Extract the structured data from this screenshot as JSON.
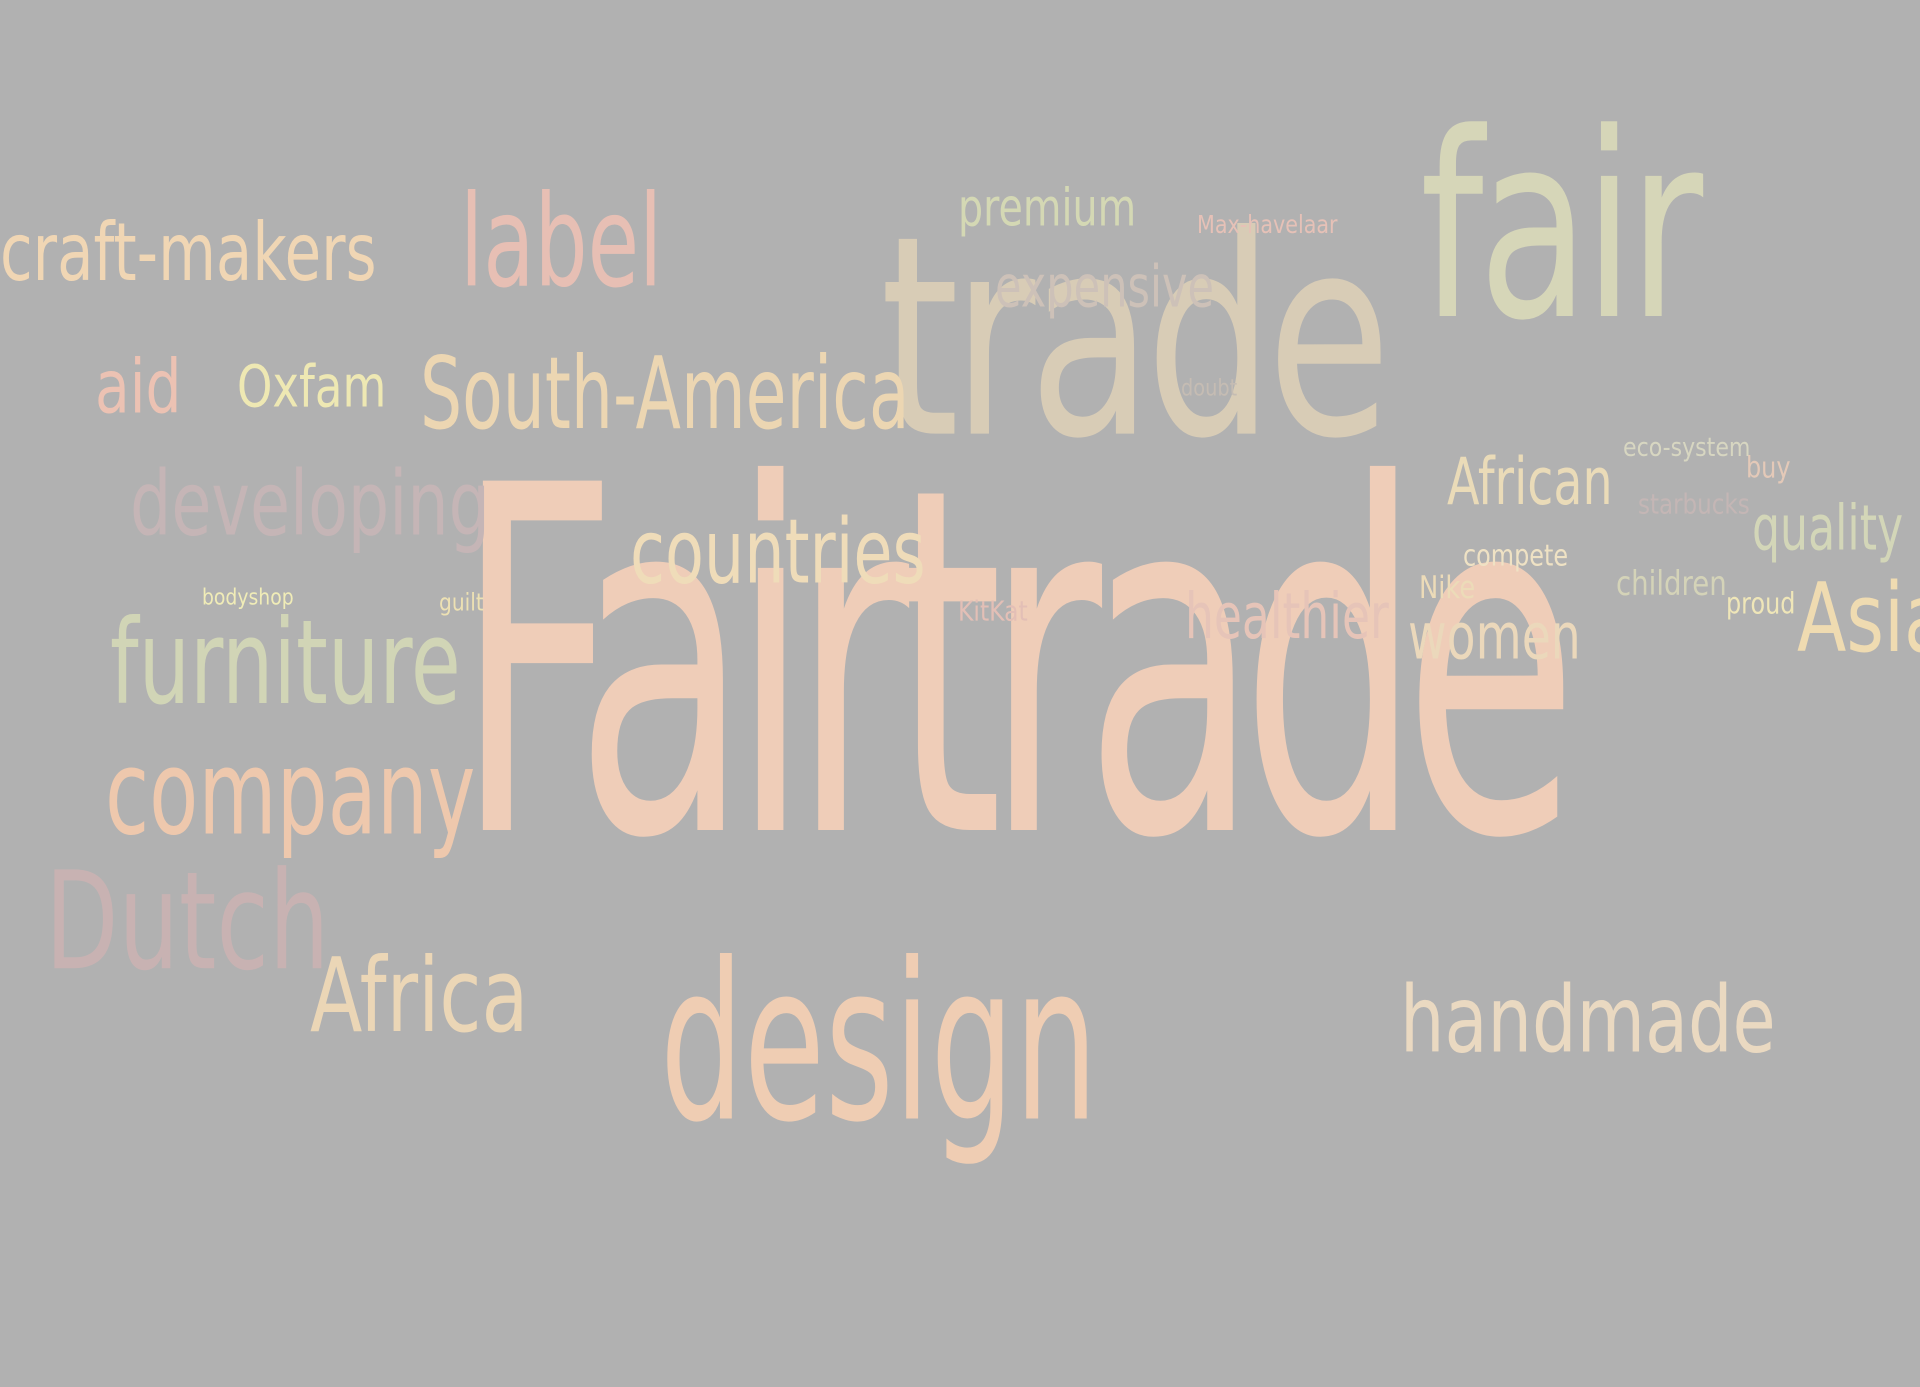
{
  "words": [
    {
      "id": "fairtrade",
      "text": "Fairtrade",
      "color": "#efcdb8"
    },
    {
      "id": "trade",
      "text": "trade",
      "color": "#d8ccb6"
    },
    {
      "id": "fair",
      "text": "fair",
      "color": "#d6d6b8"
    },
    {
      "id": "design",
      "text": "design",
      "color": "#efcdb3"
    },
    {
      "id": "company",
      "text": "company",
      "color": "#eec8ad"
    },
    {
      "id": "furniture",
      "text": "furniture",
      "color": "#d1d5b6"
    },
    {
      "id": "dutch",
      "text": "Dutch",
      "color": "#c8b2b2"
    },
    {
      "id": "africa",
      "text": "Africa",
      "color": "#ebd6b6"
    },
    {
      "id": "handmade",
      "text": "handmade",
      "color": "#ead9c1"
    },
    {
      "id": "south-america",
      "text": "South-America",
      "color": "#ecd6b2"
    },
    {
      "id": "developing",
      "text": "developing",
      "color": "#c5b5b6"
    },
    {
      "id": "countries",
      "text": "countries",
      "color": "#efdcb9"
    },
    {
      "id": "craft-makers",
      "text": "craft-makers",
      "color": "#f0d6b4"
    },
    {
      "id": "label",
      "text": "label",
      "color": "#e7bfb4"
    },
    {
      "id": "aid",
      "text": "aid",
      "color": "#ecc2b3"
    },
    {
      "id": "oxfam",
      "text": "Oxfam",
      "color": "#eee8b3"
    },
    {
      "id": "premium",
      "text": "premium",
      "color": "#d4d8b4"
    },
    {
      "id": "expensive",
      "text": "expensive",
      "color": "#cdc1b8"
    },
    {
      "id": "max-havelaar",
      "text": "Max-havelaar",
      "color": "#e6c1b7"
    },
    {
      "id": "doubt",
      "text": "doubt",
      "color": "#c5bcb3"
    },
    {
      "id": "african",
      "text": "African",
      "color": "#eadbb8"
    },
    {
      "id": "eco-system",
      "text": "eco-system",
      "color": "#d7d6c1"
    },
    {
      "id": "buy",
      "text": "buy",
      "color": "#e4c9b8"
    },
    {
      "id": "starbucks",
      "text": "starbucks",
      "color": "#c4b6b5"
    },
    {
      "id": "quality",
      "text": "quality",
      "color": "#d3d6b8"
    },
    {
      "id": "compete",
      "text": "compete",
      "color": "#efe2c4"
    },
    {
      "id": "healthier",
      "text": "healthier",
      "color": "#e6c4b8"
    },
    {
      "id": "nike",
      "text": "Nike",
      "color": "#ecdbb8"
    },
    {
      "id": "women",
      "text": "women",
      "color": "#ebd8bb"
    },
    {
      "id": "children",
      "text": "children",
      "color": "#d4d3b8"
    },
    {
      "id": "proud",
      "text": "proud",
      "color": "#efe6b8"
    },
    {
      "id": "asia",
      "text": "Asia",
      "color": "#efdbb1"
    },
    {
      "id": "kitkat",
      "text": "KitKat",
      "color": "#e3bfb6"
    },
    {
      "id": "bodyshop",
      "text": "bodyshop",
      "color": "#f0ecb7"
    },
    {
      "id": "guilt",
      "text": "guilt",
      "color": "#ede1b3"
    }
  ]
}
